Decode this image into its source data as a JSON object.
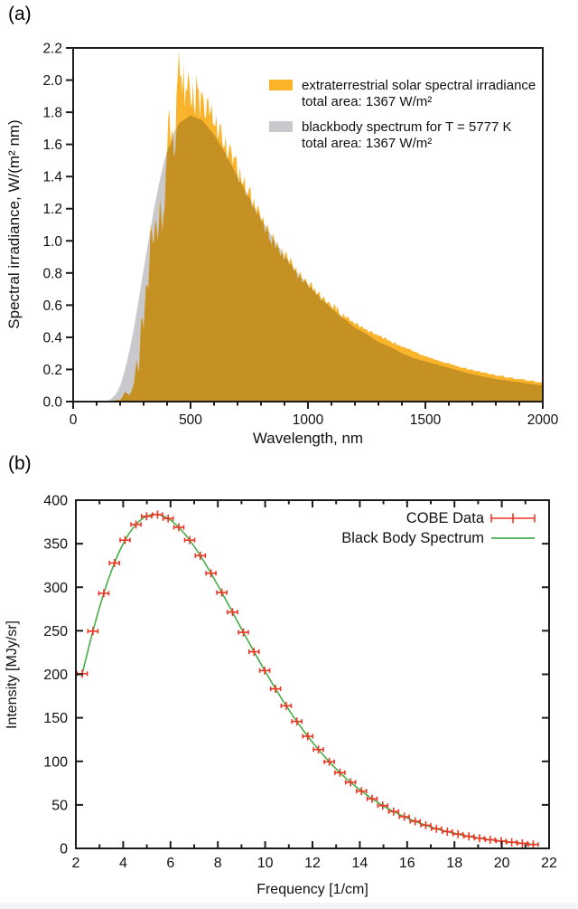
{
  "page": {
    "background": "#ffffff",
    "footer_strip_color": "#f3f5f8"
  },
  "panel_a": {
    "label": "(a)"
  },
  "panel_b": {
    "label": "(b)"
  },
  "chart_data": [
    {
      "type": "area",
      "panel": "a",
      "xlabel": "Wavelength, nm",
      "ylabel": "Spectral irradiance, W/(m² nm)",
      "xlim": [
        0,
        2000
      ],
      "ylim": [
        0.0,
        2.2
      ],
      "xticks_major": [
        0,
        500,
        1000,
        1500,
        2000
      ],
      "xtick_minor_step": 100,
      "ytick_labels": [
        "0.0",
        "0.2",
        "0.4",
        "0.6",
        "0.8",
        "1.0",
        "1.2",
        "1.4",
        "1.6",
        "1.8",
        "2.0",
        "2.2"
      ],
      "ytick_values": [
        0,
        0.2,
        0.4,
        0.6,
        0.8,
        1.0,
        1.2,
        1.4,
        1.6,
        1.8,
        2.0,
        2.2
      ],
      "grid": false,
      "legend_position": "top-right-inside",
      "frame_color": "#1c1c1c",
      "overlap_color": "#c69123",
      "texture": {
        "amplitude": 0.055,
        "range": [
          245,
          1150
        ],
        "boost_range": [
          380,
          570
        ],
        "boost": 1.9
      },
      "series": [
        {
          "name": "extraterrestrial solar spectral irradiance",
          "note": "total area: 1367 W/m²",
          "color": "#f9b42b",
          "x_start": 0,
          "x_step": 10,
          "values": [
            0,
            0,
            0,
            0,
            0,
            0,
            0,
            0,
            0,
            0,
            0,
            0,
            0,
            0,
            0,
            0,
            0,
            0,
            0.01,
            0.01,
            0.01,
            0.03,
            0.06,
            0.05,
            0.04,
            0.07,
            0.12,
            0.26,
            0.18,
            0.52,
            0.45,
            0.72,
            0.7,
            1.1,
            0.98,
            1.13,
            1.0,
            1.26,
            1.05,
            1.2,
            1.55,
            1.82,
            1.7,
            1.52,
            1.9,
            2.18,
            2.02,
            2.1,
            1.95,
            2.05,
            1.86,
            1.98,
            1.78,
            1.95,
            1.76,
            1.92,
            1.77,
            1.88,
            1.78,
            1.85,
            1.72,
            1.78,
            1.66,
            1.72,
            1.58,
            1.66,
            1.53,
            1.6,
            1.47,
            1.52,
            1.41,
            1.46,
            1.35,
            1.4,
            1.28,
            1.33,
            1.22,
            1.27,
            1.16,
            1.21,
            1.12,
            1.15,
            1.05,
            1.1,
            1.0,
            1.05,
            0.96,
            1.0,
            0.92,
            0.96,
            0.89,
            0.92,
            0.85,
            0.88,
            0.81,
            0.84,
            0.77,
            0.8,
            0.74,
            0.76,
            0.72,
            0.74,
            0.7,
            0.71,
            0.67,
            0.68,
            0.64,
            0.65,
            0.61,
            0.62,
            0.59,
            0.6,
            0.56,
            0.57,
            0.54,
            0.55,
            0.52,
            0.53,
            0.5,
            0.5,
            0.48,
            0.49,
            0.46,
            0.47,
            0.45,
            0.45,
            0.43,
            0.44,
            0.42,
            0.42,
            0.41,
            0.41,
            0.39,
            0.4,
            0.38,
            0.38,
            0.36,
            0.37,
            0.35,
            0.35,
            0.34,
            0.34,
            0.33,
            0.33,
            0.32,
            0.31,
            0.31,
            0.3,
            0.29,
            0.29,
            0.28,
            0.28,
            0.27,
            0.27,
            0.26,
            0.26,
            0.25,
            0.25,
            0.24,
            0.24,
            0.24,
            0.23,
            0.23,
            0.22,
            0.22,
            0.21,
            0.21,
            0.21,
            0.2,
            0.2,
            0.2,
            0.19,
            0.19,
            0.19,
            0.18,
            0.18,
            0.18,
            0.17,
            0.17,
            0.17,
            0.16,
            0.16,
            0.16,
            0.16,
            0.15,
            0.15,
            0.15,
            0.15,
            0.14,
            0.14,
            0.14,
            0.14,
            0.14,
            0.13,
            0.13,
            0.13,
            0.13,
            0.12,
            0.12,
            0.12,
            0.12
          ]
        },
        {
          "name": "blackbody spectrum for T = 5777 K",
          "note": "total area: 1367 W/m²",
          "color": "#c9c9cd",
          "x_start": 0,
          "x_step": 50,
          "values": [
            0,
            0,
            0.001,
            0.006,
            0.1,
            0.39,
            0.82,
            1.24,
            1.56,
            1.73,
            1.78,
            1.75,
            1.66,
            1.54,
            1.4,
            1.27,
            1.14,
            1.02,
            0.91,
            0.81,
            0.73,
            0.65,
            0.58,
            0.52,
            0.46,
            0.42,
            0.37,
            0.34,
            0.3,
            0.27,
            0.25,
            0.23,
            0.21,
            0.19,
            0.17,
            0.155,
            0.14,
            0.13,
            0.12,
            0.11,
            0.1
          ]
        }
      ]
    },
    {
      "type": "line+scatter",
      "panel": "b",
      "xlabel": "Frequency [1/cm]",
      "ylabel": "Intensity [MJy/sr]",
      "xlim": [
        2,
        22
      ],
      "ylim": [
        0,
        400
      ],
      "xticks_major": [
        2,
        4,
        6,
        8,
        10,
        12,
        14,
        16,
        18,
        20,
        22
      ],
      "xticks_minor": [
        3,
        5,
        7,
        9,
        11,
        13,
        15,
        17,
        19,
        21
      ],
      "yticks_major": [
        0,
        50,
        100,
        150,
        200,
        250,
        300,
        350,
        400
      ],
      "grid": false,
      "frame_color": "#1c1c1c",
      "legend_position": "top-right-inside",
      "series": [
        {
          "name": "COBE Data",
          "color": "#ee3524",
          "marker": "plus-errorbar",
          "x": [
            2.27,
            2.72,
            3.18,
            3.63,
            4.08,
            4.54,
            4.99,
            5.45,
            5.9,
            6.35,
            6.81,
            7.26,
            7.71,
            8.17,
            8.62,
            9.08,
            9.53,
            9.98,
            10.44,
            10.89,
            11.34,
            11.8,
            12.25,
            12.71,
            13.16,
            13.61,
            14.07,
            14.52,
            14.97,
            15.43,
            15.88,
            16.34,
            16.79,
            17.24,
            17.7,
            18.15,
            18.61,
            19.06,
            19.51,
            19.97,
            20.42,
            20.87,
            21.33
          ],
          "y": [
            200.7,
            249.5,
            293.0,
            327.8,
            354.1,
            372.1,
            381.5,
            383.5,
            378.9,
            368.8,
            354.1,
            336.3,
            316.1,
            293.9,
            271.4,
            248.2,
            225.9,
            204.3,
            183.3,
            163.8,
            145.8,
            128.8,
            113.6,
            99.5,
            87.0,
            75.9,
            65.8,
            57.0,
            49.2,
            42.3,
            36.4,
            31.1,
            26.6,
            22.6,
            19.3,
            16.4,
            13.8,
            11.7,
            9.9,
            8.4,
            7.1,
            5.8,
            4.5
          ]
        },
        {
          "name": "Black Body Spectrum",
          "color": "#46ad49",
          "style": "smooth-line",
          "follows": "same points as COBE Data"
        }
      ]
    }
  ]
}
